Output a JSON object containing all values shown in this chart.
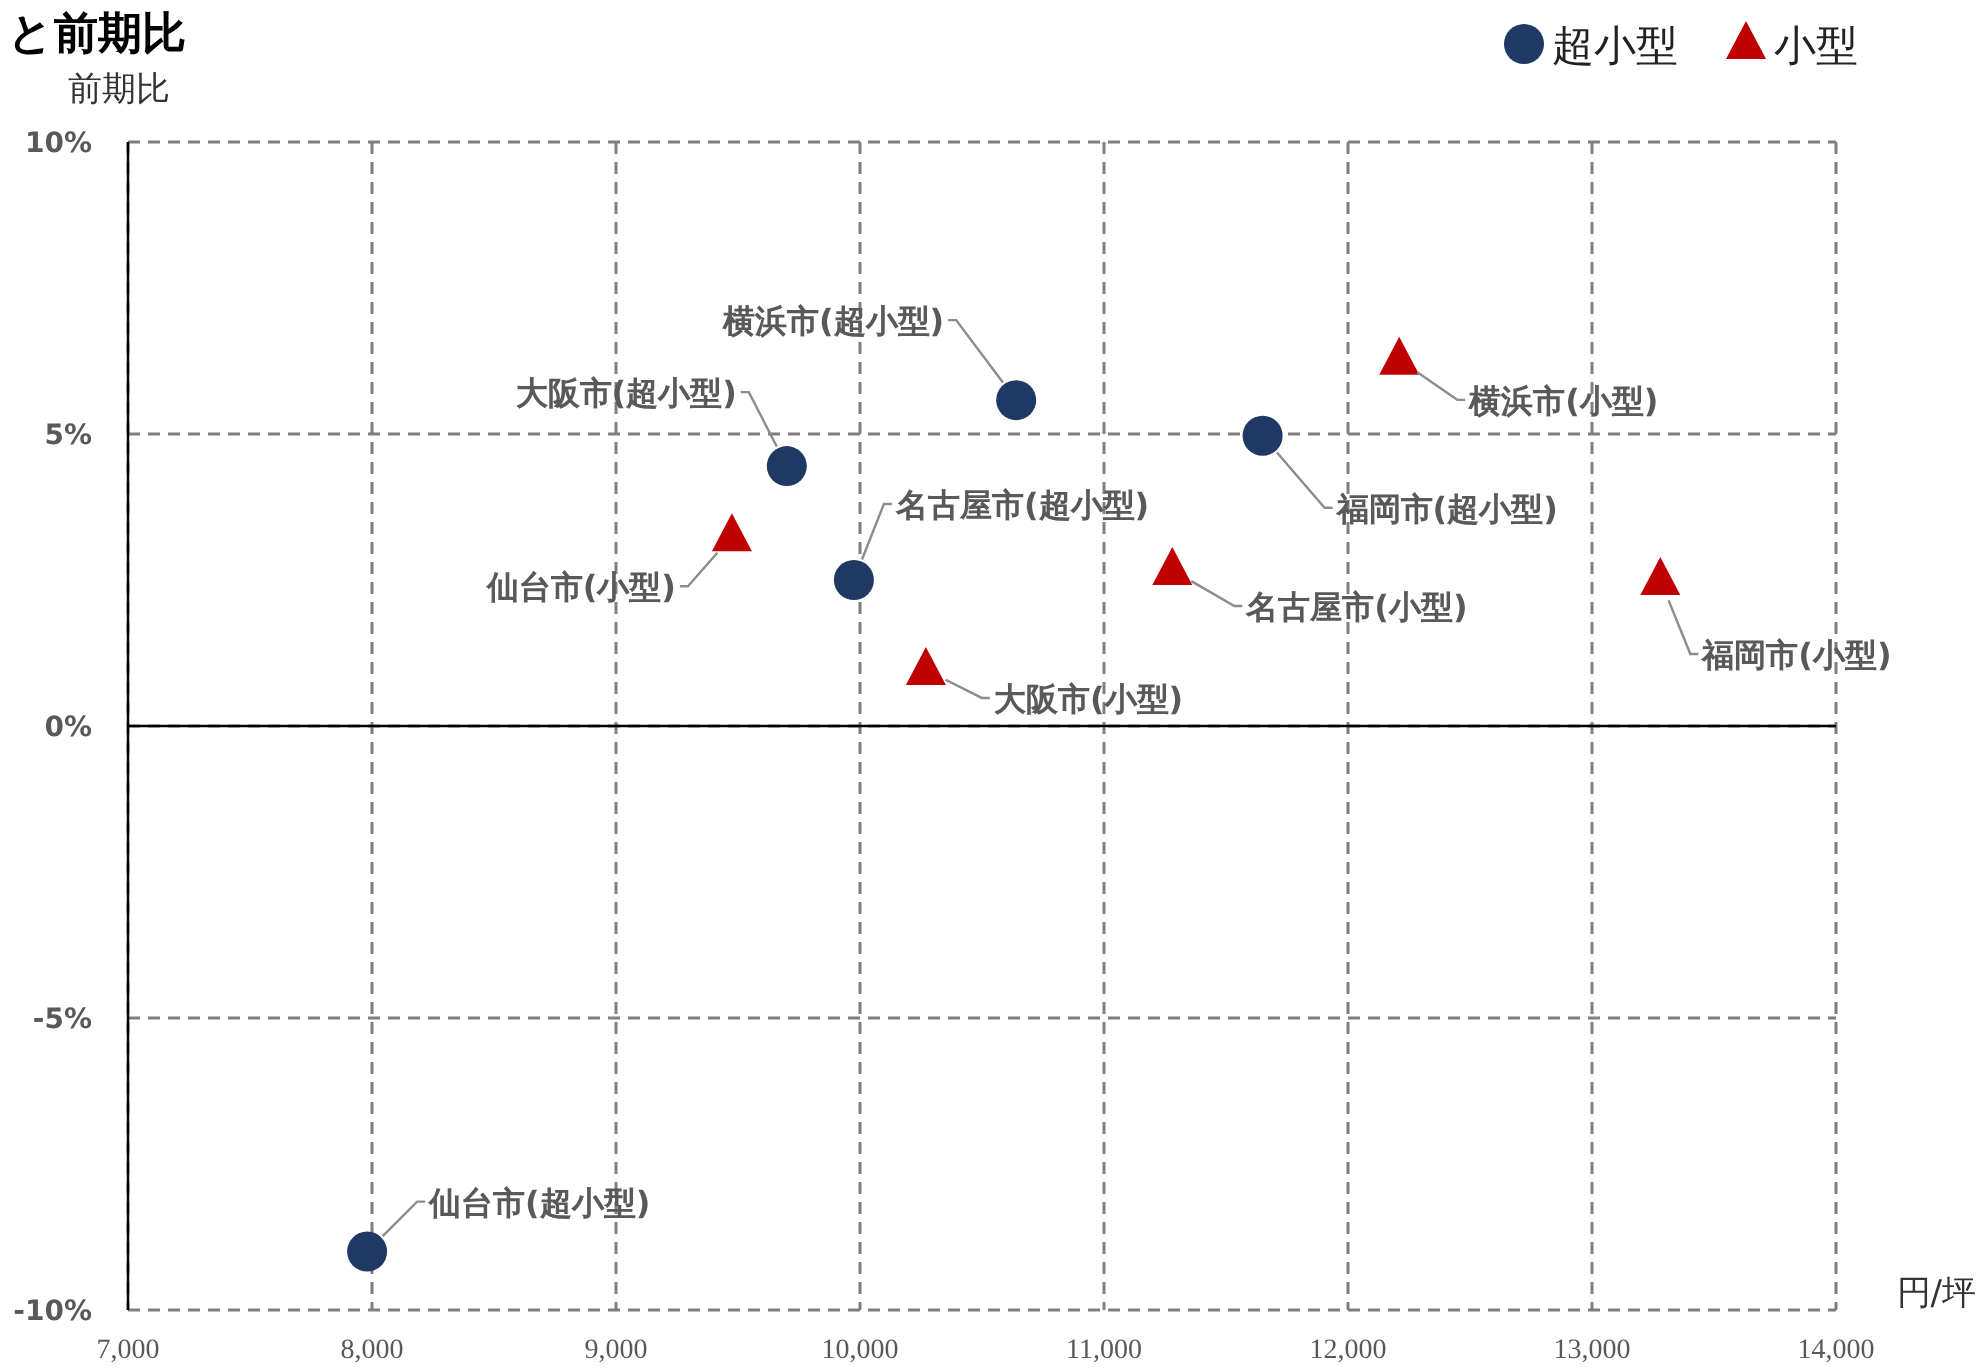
{
  "chart_data": {
    "type": "scatter",
    "title": "と前期比",
    "xlabel": "円/坪",
    "ylabel": "前期比",
    "xlim": [
      7000,
      14000
    ],
    "ylim": [
      -10,
      10
    ],
    "xticks": [
      {
        "value": 7000,
        "label": "7,000"
      },
      {
        "value": 8000,
        "label": "8,000"
      },
      {
        "value": 9000,
        "label": "9,000"
      },
      {
        "value": 10000,
        "label": "10,000"
      },
      {
        "value": 11000,
        "label": "11,000"
      },
      {
        "value": 12000,
        "label": "12,000"
      },
      {
        "value": 13000,
        "label": "13,000"
      },
      {
        "value": 14000,
        "label": "14,000"
      }
    ],
    "yticks": [
      {
        "value": -10,
        "label": "-10%"
      },
      {
        "value": -5,
        "label": "-5%"
      },
      {
        "value": 0,
        "label": "0%"
      },
      {
        "value": 5,
        "label": "5%"
      },
      {
        "value": 10,
        "label": "10%"
      }
    ],
    "grid": true,
    "legend": "top right",
    "series": [
      {
        "name": "超小型",
        "color": "#1f3864",
        "marker": "circle",
        "x": [
          7980,
          9700,
          9975,
          10640,
          11650
        ],
        "values": [
          -9.0,
          4.45,
          2.5,
          5.58,
          4.97
        ]
      },
      {
        "name": "小型",
        "color": "#c00000",
        "marker": "triangle",
        "x": [
          9475,
          10270,
          11280,
          12210,
          13280
        ],
        "values": [
          3.25,
          0.96,
          2.67,
          6.27,
          2.5
        ]
      }
    ],
    "annotations": [
      {
        "text": "仙台市(超小型)",
        "x": 7980,
        "y": -9.0
      },
      {
        "text": "大阪市(超小型)",
        "x": 9700,
        "y": 4.45
      },
      {
        "text": "名古屋市(超小型)",
        "x": 9975,
        "y": 2.5
      },
      {
        "text": "横浜市(超小型)",
        "x": 10640,
        "y": 5.58
      },
      {
        "text": "福岡市(超小型)",
        "x": 11650,
        "y": 4.97
      },
      {
        "text": "仙台市(小型)",
        "x": 9475,
        "y": 3.25
      },
      {
        "text": "大阪市(小型)",
        "x": 10270,
        "y": 0.96
      },
      {
        "text": "名古屋市(小型)",
        "x": 11280,
        "y": 2.67
      },
      {
        "text": "横浜市(小型)",
        "x": 12210,
        "y": 6.27
      },
      {
        "text": "福岡市(小型)",
        "x": 13280,
        "y": 2.5
      }
    ]
  }
}
